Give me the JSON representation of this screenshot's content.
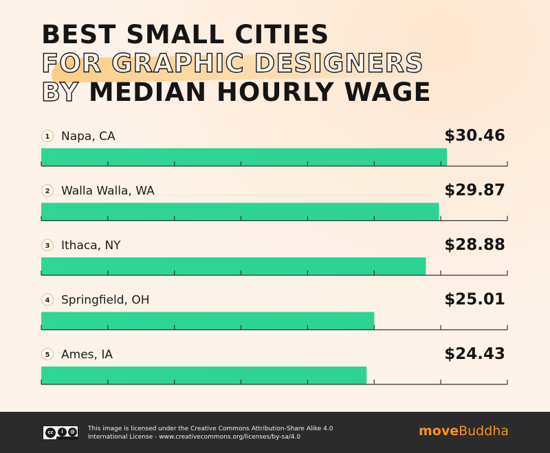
{
  "title": {
    "line1": "BEST SMALL CITIES",
    "line2": "FOR GRAPHIC DESIGNERS",
    "line3_outline": "BY",
    "line3_solid": "MEDIAN HOURLY WAGE"
  },
  "chart_data": {
    "type": "bar",
    "orientation": "horizontal",
    "ranks": [
      "1",
      "2",
      "3",
      "4",
      "5"
    ],
    "categories": [
      "Napa, CA",
      "Walla Walla, WA",
      "Ithaca, NY",
      "Springfield, OH",
      "Ames, IA"
    ],
    "values": [
      30.46,
      29.87,
      28.88,
      25.01,
      24.43
    ],
    "value_labels": [
      "$30.46",
      "$29.87",
      "$28.88",
      "$25.01",
      "$24.43"
    ],
    "xlim": [
      0,
      35
    ],
    "bar_color": "#2fd696",
    "grid": false
  },
  "footer": {
    "license_line1": "This image is licensed under the Creative Commons Attribution-Share Alike 4.0",
    "license_line2": "International License - www.creativecommons.org/licenses/by-sa/4.0",
    "cc_icon": "creative-commons-by-sa-icon",
    "cc_text": "cc",
    "by_text": "i",
    "sa_text": "@",
    "brand_part1": "move",
    "brand_part2": "Buddha",
    "brand_color": "#f7941d"
  }
}
